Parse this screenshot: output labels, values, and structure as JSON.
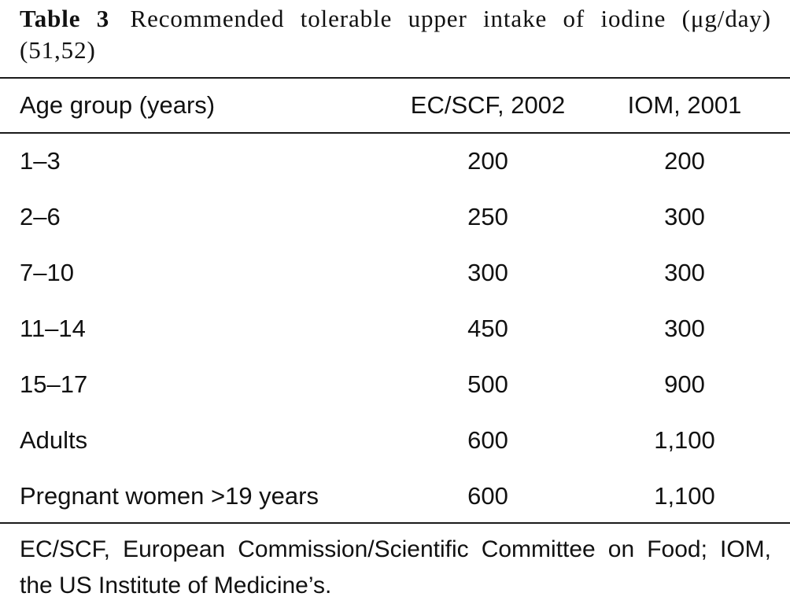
{
  "caption": {
    "label": "Table 3",
    "text": "Recommended tolerable upper intake of iodine (μg/day) (51,52)"
  },
  "table": {
    "headers": [
      "Age group (years)",
      "EC/SCF, 2002",
      "IOM, 2001"
    ],
    "rows": [
      [
        "1–3",
        "200",
        "200"
      ],
      [
        "2–6",
        "250",
        "300"
      ],
      [
        "7–10",
        "300",
        "300"
      ],
      [
        "11–14",
        "450",
        "300"
      ],
      [
        "15–17",
        "500",
        "900"
      ],
      [
        "Adults",
        "600",
        "1,100"
      ],
      [
        "Pregnant women >19 years",
        "600",
        "1,100"
      ]
    ]
  },
  "footnote": "EC/SCF, European Commission/Scientific Committee on Food; IOM, the US Institute of Medicine’s."
}
